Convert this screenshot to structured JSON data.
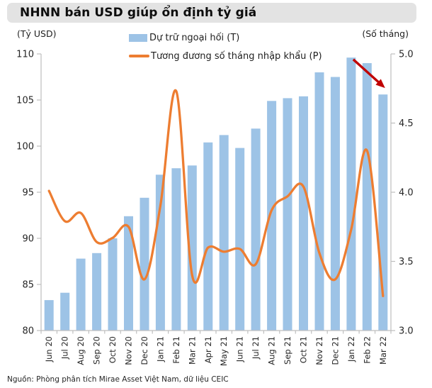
{
  "header": {
    "title": "NHNN bán USD giúp ổn định tỷ giá"
  },
  "chart": {
    "left_axis_title": "(Tỷ USD)",
    "right_axis_title": "(Số tháng)",
    "legend": [
      {
        "label": "Dự trữ ngoại hối (T)",
        "marker": "bar"
      },
      {
        "label": "Tương đương số tháng nhập khẩu (P)",
        "marker": "line"
      }
    ]
  },
  "chart_data": {
    "type": "bar+line",
    "title": "NHNN bán USD giúp ổn định tỷ giá",
    "categories": [
      "Jun 20",
      "Jul 20",
      "Aug 20",
      "Sep 20",
      "Oct 20",
      "Nov 20",
      "Dec 20",
      "Jan 21",
      "Feb 21",
      "Mar 21",
      "Apr 21",
      "May 21",
      "Jun 21",
      "Jul 21",
      "Aug 21",
      "Sep 21",
      "Oct 21",
      "Nov 21",
      "Dec 21",
      "Jan 22",
      "Feb 22",
      "Mar 22"
    ],
    "series": [
      {
        "name": "Dự trữ ngoại hối (T)",
        "type": "bar",
        "axis": "left",
        "color": "#9dc3e6",
        "values": [
          83.3,
          84.1,
          87.8,
          88.4,
          90.0,
          92.4,
          94.4,
          96.9,
          97.6,
          97.9,
          100.4,
          101.2,
          99.8,
          101.9,
          104.9,
          105.2,
          105.4,
          108.0,
          107.5,
          109.6,
          109.0,
          105.6
        ]
      },
      {
        "name": "Tương đương số tháng nhập khẩu (P)",
        "type": "line",
        "axis": "right",
        "color": "#ed7d31",
        "values": [
          4.01,
          3.79,
          3.85,
          3.64,
          3.67,
          3.75,
          3.37,
          3.9,
          4.73,
          3.4,
          3.6,
          3.57,
          3.59,
          3.48,
          3.87,
          3.97,
          4.04,
          3.56,
          3.37,
          3.73,
          4.3,
          3.25
        ]
      }
    ],
    "left_axis": {
      "label": "(Tỷ USD)",
      "min": 80,
      "max": 110,
      "step": 5,
      "ticks": [
        "80",
        "85",
        "90",
        "95",
        "100",
        "105",
        "110"
      ]
    },
    "right_axis": {
      "label": "(Số tháng)",
      "min": 3.0,
      "max": 5.0,
      "step": 0.5,
      "ticks": [
        "3.0",
        "3.5",
        "4.0",
        "4.5",
        "5.0"
      ]
    },
    "grid": false,
    "legend_position": "top-center",
    "annotation": {
      "type": "arrow",
      "from_category": "Jan 22",
      "from_value": 109.4,
      "to_category": "Mar 22",
      "to_value": 106.3,
      "color": "#c00000"
    }
  },
  "colors": {
    "bar": "#9dc3e6",
    "line": "#ed7d31",
    "arrow": "#c00000",
    "axis": "#bfbfbf",
    "tick_text": "#262626",
    "title_bg": "#e3e3e3"
  },
  "footer": {
    "source": "Nguồn: Phòng phân tích Mirae Asset Việt Nam, dữ liệu CEIC"
  }
}
